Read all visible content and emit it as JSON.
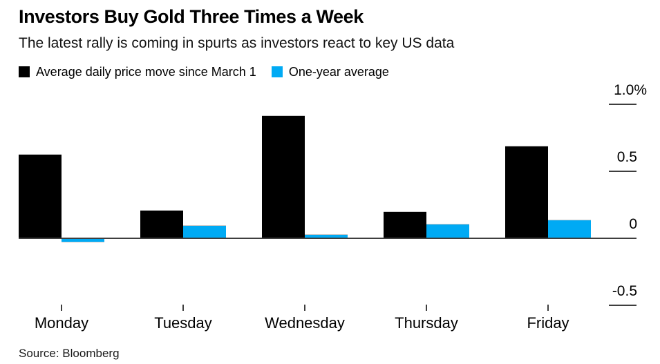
{
  "header": {
    "title": "Investors Buy Gold Three Times a Week",
    "subtitle": "The latest rally is coming in spurts as investors react to key US data"
  },
  "legend": {
    "items": [
      {
        "label": "Average daily price move since March 1",
        "color": "#000000"
      },
      {
        "label": "One-year average",
        "color": "#00aaf4"
      }
    ]
  },
  "footer": {
    "source": "Source: Bloomberg"
  },
  "colors": {
    "series_black": "#000000",
    "series_cyan": "#00aaf4",
    "axis": "#3e3e3e",
    "background": "#ffffff",
    "text": "#000000"
  },
  "chart_data": {
    "type": "bar",
    "title": "Investors Buy Gold Three Times a Week",
    "subtitle": "The latest rally is coming in spurts as investors react to key US data",
    "categories": [
      "Monday",
      "Tuesday",
      "Wednesday",
      "Thursday",
      "Friday"
    ],
    "series": [
      {
        "name": "Average daily price move since March 1",
        "color": "#000000",
        "values": [
          0.63,
          0.21,
          0.92,
          0.2,
          0.69
        ]
      },
      {
        "name": "One-year average",
        "color": "#00aaf4",
        "values": [
          -0.03,
          0.1,
          0.03,
          0.11,
          0.14
        ]
      }
    ],
    "unit": "%",
    "xlabel": "",
    "ylabel": "",
    "yticks": [
      {
        "value": 1.0,
        "label": "1.0%"
      },
      {
        "value": 0.5,
        "label": "0.5"
      },
      {
        "value": 0.0,
        "label": "0"
      },
      {
        "value": -0.5,
        "label": "-0.5"
      }
    ],
    "ylim": [
      -0.75,
      1.08
    ],
    "grid": false,
    "axis_side": "right",
    "legend_position": "top-left",
    "source": "Source: Bloomberg"
  }
}
